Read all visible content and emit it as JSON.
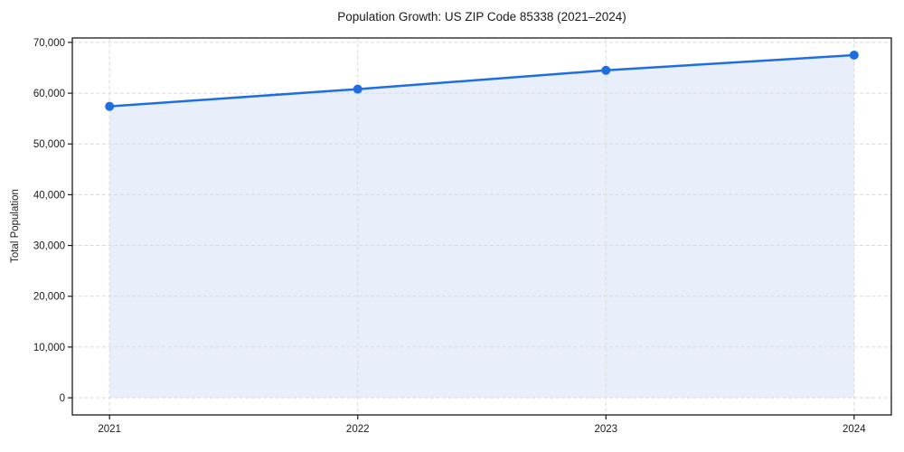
{
  "figure": {
    "title": "Population Growth: US ZIP Code 85338 (2021–2024)"
  },
  "chart_data": {
    "type": "line",
    "title": "Population Growth: US ZIP Code 85338 (2021–2024)",
    "x": [
      2021,
      2022,
      2023,
      2024
    ],
    "series": [
      {
        "name": "Total Population",
        "values": [
          57400,
          60800,
          64500,
          67500
        ]
      }
    ],
    "xlabel": "",
    "ylabel": "Total Population",
    "xlim_data": [
      2021,
      2024
    ],
    "ylim": [
      0,
      70000
    ],
    "xticks": [
      2021,
      2022,
      2023,
      2024
    ],
    "xtick_labels": [
      "2021",
      "2022",
      "2023",
      "2024"
    ],
    "yticks": [
      0,
      10000,
      20000,
      30000,
      40000,
      50000,
      60000,
      70000
    ],
    "ytick_labels": [
      "0",
      "10,000",
      "20,000",
      "30,000",
      "40,000",
      "50,000",
      "60,000",
      "70,000"
    ],
    "grid": "both-dashed",
    "legend": "none",
    "marker": "circle",
    "area_fill_to_zero": true,
    "colors": {
      "line": "#1e6ee3",
      "marker": "#1e6ee3",
      "fill": "#e8effb",
      "grid": "#d9d9d9",
      "spine": "#1a1a1a",
      "text": "#1a1a1a",
      "background": "#ffffff"
    }
  }
}
